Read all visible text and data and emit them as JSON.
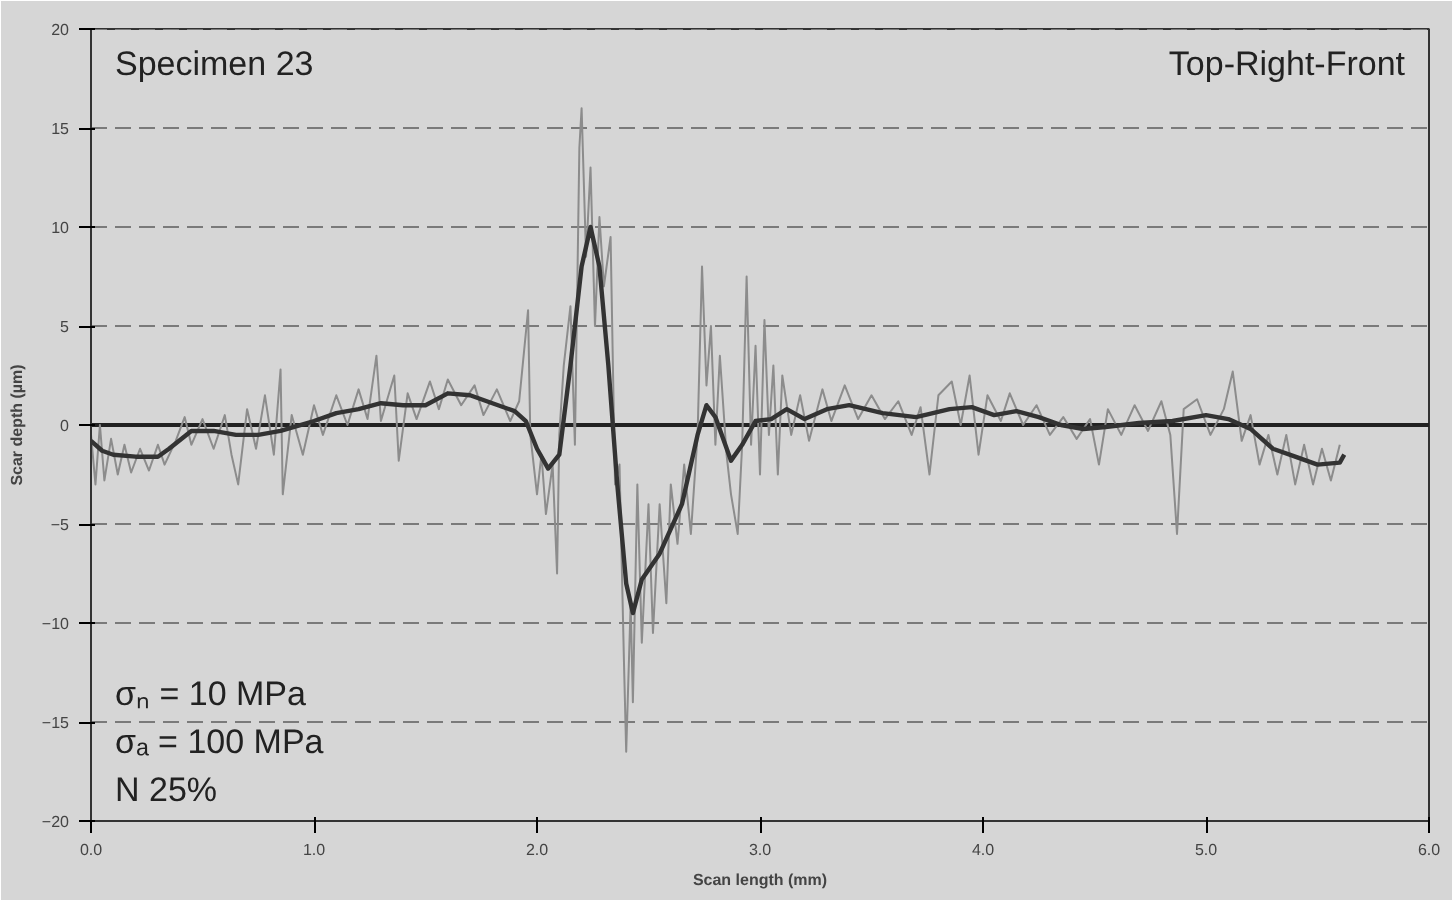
{
  "chart_data": {
    "type": "line",
    "title": "Specimen 23",
    "subtitle": "Top-Right-Front",
    "xlabel": "Scan length (mm)",
    "ylabel": "Scar depth (µm)",
    "annotations": [
      "σₙ =    10   MPa",
      "σₐ =    100 MPa",
      "N         25%"
    ],
    "xlim": [
      0,
      6
    ],
    "ylim": [
      -20,
      20
    ],
    "xticks": [
      {
        "value": 0,
        "label": "0.0"
      },
      {
        "value": 1,
        "label": "1.0"
      },
      {
        "value": 2,
        "label": "2.0"
      },
      {
        "value": 3,
        "label": "3.0"
      },
      {
        "value": 4,
        "label": "4.0"
      },
      {
        "value": 5,
        "label": "5.0"
      },
      {
        "value": 6,
        "label": "6.0"
      }
    ],
    "yticks": [
      -20,
      -15,
      -10,
      -5,
      0,
      5,
      10,
      15,
      20
    ],
    "grid": "y",
    "marker": "none",
    "ref_lines": [
      {
        "axis": "y",
        "value": 0,
        "color": "#222222"
      }
    ],
    "series": [
      {
        "color": "#8c8c8c",
        "x": [
          0.0,
          0.02,
          0.04,
          0.06,
          0.09,
          0.12,
          0.15,
          0.18,
          0.22,
          0.26,
          0.3,
          0.33,
          0.38,
          0.42,
          0.45,
          0.5,
          0.55,
          0.6,
          0.63,
          0.66,
          0.7,
          0.74,
          0.78,
          0.82,
          0.85,
          0.86,
          0.9,
          0.95,
          1.0,
          1.04,
          1.1,
          1.15,
          1.2,
          1.24,
          1.28,
          1.3,
          1.36,
          1.38,
          1.42,
          1.46,
          1.52,
          1.56,
          1.6,
          1.66,
          1.72,
          1.76,
          1.82,
          1.88,
          1.92,
          1.96,
          1.97,
          2.0,
          2.02,
          2.04,
          2.07,
          2.09,
          2.1,
          2.12,
          2.15,
          2.17,
          2.19,
          2.2,
          2.22,
          2.24,
          2.26,
          2.28,
          2.3,
          2.33,
          2.35,
          2.37,
          2.39,
          2.4,
          2.42,
          2.43,
          2.45,
          2.47,
          2.5,
          2.52,
          2.55,
          2.58,
          2.6,
          2.63,
          2.66,
          2.69,
          2.72,
          2.74,
          2.76,
          2.78,
          2.8,
          2.82,
          2.85,
          2.87,
          2.9,
          2.92,
          2.94,
          2.96,
          2.98,
          3.0,
          3.02,
          3.04,
          3.06,
          3.08,
          3.1,
          3.14,
          3.18,
          3.22,
          3.28,
          3.32,
          3.38,
          3.44,
          3.5,
          3.56,
          3.62,
          3.68,
          3.72,
          3.76,
          3.8,
          3.86,
          3.9,
          3.94,
          3.98,
          4.02,
          4.08,
          4.12,
          4.18,
          4.24,
          4.3,
          4.36,
          4.42,
          4.48,
          4.52,
          4.56,
          4.62,
          4.68,
          4.74,
          4.8,
          4.84,
          4.87,
          4.9,
          4.96,
          5.02,
          5.08,
          5.12,
          5.16,
          5.2,
          5.24,
          5.28,
          5.32,
          5.36,
          5.4,
          5.44,
          5.48,
          5.52,
          5.56,
          5.6
        ],
        "values": [
          -0.5,
          -3,
          0,
          -2.8,
          -0.7,
          -2.5,
          -1,
          -2.4,
          -1.2,
          -2.3,
          -1,
          -2,
          -0.8,
          0.4,
          -1,
          0.3,
          -1.2,
          0.5,
          -1.5,
          -3,
          0.8,
          -1.2,
          1.5,
          -1.5,
          2.8,
          -3.5,
          0.5,
          -1.5,
          1,
          -0.5,
          1.5,
          0,
          1.8,
          0.3,
          3.5,
          0.2,
          2.5,
          -1.8,
          1.6,
          0.3,
          2.2,
          0.8,
          2.3,
          1,
          2,
          0.5,
          1.8,
          0.2,
          1.2,
          5.8,
          -0.5,
          -3.5,
          -1.5,
          -4.5,
          -2,
          -7.5,
          -0.5,
          3,
          6,
          -1,
          14,
          16,
          8.5,
          13,
          5,
          10.5,
          7,
          9.5,
          -3,
          -2,
          -12,
          -16.5,
          -9,
          -14,
          -3,
          -11,
          -4,
          -10.5,
          -4,
          -9,
          -3,
          -6,
          -2,
          -5.5,
          -0.5,
          8,
          2,
          5,
          -1,
          3.5,
          -1.5,
          -3.5,
          -5.5,
          -1,
          7.5,
          -1,
          4,
          -2.5,
          5.3,
          -0.5,
          3,
          -2.5,
          2.5,
          -0.5,
          1.5,
          -0.8,
          1.8,
          0.2,
          2,
          0.3,
          1.5,
          0.3,
          1.2,
          -0.5,
          0.9,
          -2.5,
          1.5,
          2.2,
          0,
          2.5,
          -1.5,
          1.5,
          0.2,
          1.6,
          0,
          1,
          -0.5,
          0.4,
          -0.7,
          0.3,
          -2,
          0.8,
          -0.5,
          1,
          -0.3,
          1.2,
          -0.5,
          -5.5,
          0.8,
          1.3,
          -0.5,
          0.8,
          2.7,
          -0.8,
          0.5,
          -2,
          -0.5,
          -2.5,
          -0.5,
          -3,
          -1,
          -3,
          -1.2,
          -2.8,
          -1
        ]
      },
      {
        "color": "#333333",
        "x": [
          0.0,
          0.05,
          0.1,
          0.2,
          0.3,
          0.35,
          0.45,
          0.55,
          0.65,
          0.75,
          0.85,
          1.0,
          1.1,
          1.2,
          1.3,
          1.4,
          1.5,
          1.6,
          1.7,
          1.8,
          1.9,
          1.95,
          2.0,
          2.05,
          2.1,
          2.15,
          2.2,
          2.24,
          2.28,
          2.32,
          2.36,
          2.4,
          2.43,
          2.47,
          2.55,
          2.65,
          2.72,
          2.76,
          2.8,
          2.87,
          2.92,
          2.98,
          3.05,
          3.12,
          3.2,
          3.3,
          3.4,
          3.55,
          3.7,
          3.85,
          3.95,
          4.05,
          4.15,
          4.25,
          4.35,
          4.45,
          4.55,
          4.7,
          4.85,
          5.0,
          5.1,
          5.2,
          5.3,
          5.4,
          5.5,
          5.6,
          5.62
        ],
        "values": [
          -0.8,
          -1.3,
          -1.5,
          -1.6,
          -1.6,
          -1.2,
          -0.3,
          -0.3,
          -0.5,
          -0.5,
          -0.3,
          0.2,
          0.6,
          0.8,
          1.1,
          1.0,
          1.0,
          1.6,
          1.5,
          1.1,
          0.7,
          0.2,
          -1.2,
          -2.2,
          -1.5,
          3,
          8,
          10,
          8,
          3,
          -3,
          -8,
          -9.5,
          -7.8,
          -6.5,
          -4,
          -0.5,
          1,
          0.4,
          -1.8,
          -1.0,
          0.2,
          0.3,
          0.8,
          0.3,
          0.8,
          1.0,
          0.6,
          0.4,
          0.8,
          0.9,
          0.5,
          0.7,
          0.4,
          0.0,
          -0.2,
          -0.1,
          0.1,
          0.2,
          0.5,
          0.3,
          -0.2,
          -1.2,
          -1.6,
          -2.0,
          -1.9,
          -1.5
        ]
      }
    ]
  }
}
